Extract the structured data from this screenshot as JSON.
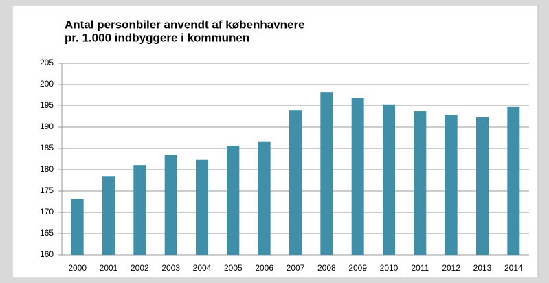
{
  "chart_data": {
    "type": "bar",
    "title": [
      "Antal personbiler anvendt af københavnere",
      "pr. 1.000 indbyggere i kommunen"
    ],
    "categories": [
      "2000",
      "2001",
      "2002",
      "2003",
      "2004",
      "2005",
      "2006",
      "2007",
      "2008",
      "2009",
      "2010",
      "2011",
      "2012",
      "2013",
      "2014"
    ],
    "values": [
      173.2,
      178.5,
      181.1,
      183.4,
      182.3,
      185.6,
      186.5,
      194.0,
      198.2,
      196.9,
      195.2,
      193.7,
      192.9,
      192.3,
      194.7
    ],
    "color": "#3f8fa8",
    "ylim": [
      160,
      205
    ],
    "yticks": [
      160,
      165,
      170,
      175,
      180,
      185,
      190,
      195,
      200,
      205
    ],
    "grid": true
  }
}
